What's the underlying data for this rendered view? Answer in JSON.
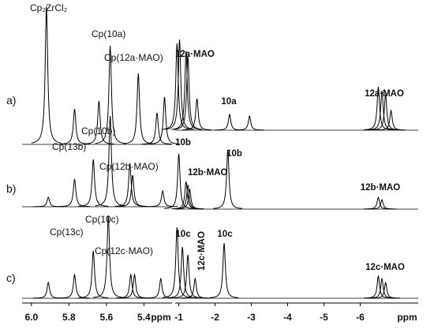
{
  "chart_data": [
    {
      "type": "spectrum",
      "x_label": "ppm",
      "xlim": [
        6.05,
        5.25
      ],
      "xticks": [
        {
          "value": 6.0,
          "label": "6.0"
        },
        5.8,
        5.6,
        5.4
      ],
      "series": [
        {
          "name": "a)",
          "x": [
            5.92,
            5.77,
            5.64,
            5.58,
            5.43,
            5.33,
            5.29
          ],
          "values": [
            175,
            45,
            55,
            125,
            90,
            40,
            60
          ]
        },
        {
          "name": "b)",
          "x": [
            5.91,
            5.77,
            5.67,
            5.58,
            5.475,
            5.46,
            5.3
          ],
          "values": [
            12,
            35,
            60,
            115,
            55,
            40,
            20
          ]
        },
        {
          "name": "c)",
          "x": [
            5.91,
            5.77,
            5.67,
            5.59,
            5.47,
            5.45,
            5.31
          ],
          "values": [
            20,
            30,
            60,
            105,
            30,
            30,
            25
          ]
        }
      ],
      "annotations": [
        "Cp₂ZrCl₂",
        "Cp(10a)",
        "Cp(12a·MAO)",
        "Cp(10b)",
        "Cp(13b)",
        "Cp(12b·MAO)",
        "Cp(10c)",
        "Cp(13c)",
        "Cp(12c·MAO)"
      ]
    },
    {
      "type": "spectrum",
      "x_label": "ppm",
      "xlim": [
        -0.9,
        -7.6
      ],
      "xticks": [
        -1,
        -2,
        -3,
        -4,
        -5,
        -6
      ],
      "series": [
        {
          "x": [
            -0.95,
            -1.02,
            -1.2,
            -1.25,
            -1.5,
            -2.4,
            -2.95,
            -6.5,
            -6.6,
            -6.7,
            -6.85
          ],
          "values": [
            110,
            115,
            100,
            95,
            40,
            20,
            18,
            55,
            50,
            45,
            25
          ]
        },
        {
          "x": [
            -1.0,
            -1.2,
            -1.25,
            -1.3,
            -2.35,
            -6.5,
            -6.6
          ],
          "values": [
            70,
            35,
            30,
            25,
            75,
            15,
            12
          ]
        },
        {
          "x": [
            -0.95,
            -1.1,
            -1.25,
            -1.45,
            -2.25,
            -6.5,
            -6.6,
            -6.7
          ],
          "values": [
            90,
            65,
            55,
            25,
            70,
            28,
            25,
            20
          ]
        }
      ],
      "annotations": [
        "12a·MAO",
        "10a",
        "12a·MAO",
        "10b",
        "12b·MAO",
        "10b",
        "12b·MAO",
        "10c",
        "12c·MAO",
        "10c",
        "12c·MAO"
      ]
    }
  ]
}
